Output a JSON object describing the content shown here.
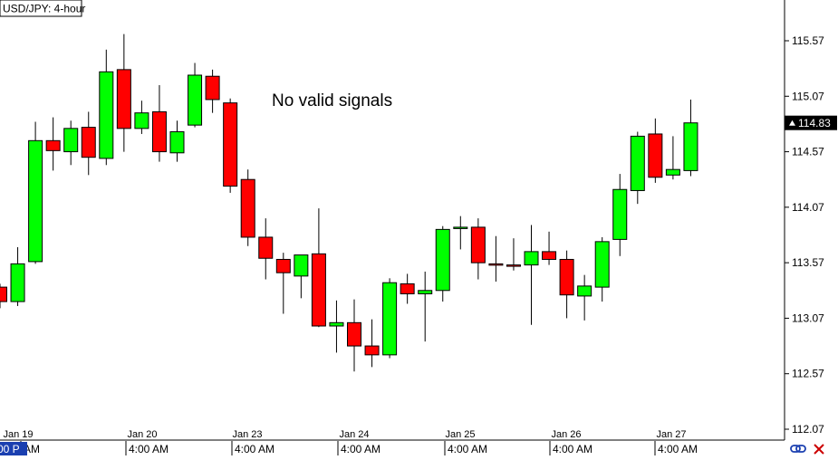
{
  "header": {
    "symbol_label": "USD/JPY: 4-hour"
  },
  "annotation": {
    "text": "No valid signals"
  },
  "price_badge": {
    "value": "114.83"
  },
  "status_bar": {
    "left_clip": "00 P"
  },
  "icons": {
    "link": "link-icon",
    "close": "close-x-icon"
  },
  "colors": {
    "bull": "#00ff00",
    "bear": "#ff0000",
    "outline": "#000000",
    "axis": "#000000",
    "background": "#ffffff",
    "badge_bg": "#000000",
    "badge_text": "#ffffff",
    "status_bar_bg": "#1a3fb0",
    "close_icon": "#cc0000",
    "link_icon": "#1a3fb0"
  },
  "chart_data": {
    "type": "candlestick",
    "title": "USD/JPY: 4-hour",
    "ylim": [
      112.07,
      115.82
    ],
    "y_ticks": [
      "115.57",
      "115.07",
      "114.57",
      "114.07",
      "113.57",
      "113.07",
      "112.57",
      "112.07"
    ],
    "grid": false,
    "date_labels": [
      "Jan 19",
      "Jan 20",
      "Jan 23",
      "Jan 24",
      "Jan 25",
      "Jan 26",
      "Jan 27"
    ],
    "time_labels": [
      "AM",
      "4:00 AM",
      "4:00 AM",
      "4:00 AM",
      "4:00 AM",
      "4:00 AM",
      "4:00 AM"
    ],
    "candles": [
      {
        "o": 113.35,
        "h": 113.38,
        "l": 113.16,
        "c": 113.22
      },
      {
        "o": 113.22,
        "h": 113.71,
        "l": 113.18,
        "c": 113.56
      },
      {
        "o": 113.58,
        "h": 114.84,
        "l": 113.56,
        "c": 114.67
      },
      {
        "o": 114.67,
        "h": 114.88,
        "l": 114.4,
        "c": 114.58
      },
      {
        "o": 114.57,
        "h": 114.85,
        "l": 114.45,
        "c": 114.78
      },
      {
        "o": 114.79,
        "h": 114.93,
        "l": 114.36,
        "c": 114.52
      },
      {
        "o": 114.51,
        "h": 115.49,
        "l": 114.45,
        "c": 115.29
      },
      {
        "o": 115.31,
        "h": 115.63,
        "l": 114.57,
        "c": 114.78
      },
      {
        "o": 114.78,
        "h": 115.03,
        "l": 114.73,
        "c": 114.92
      },
      {
        "o": 114.93,
        "h": 115.17,
        "l": 114.48,
        "c": 114.57
      },
      {
        "o": 114.56,
        "h": 114.85,
        "l": 114.48,
        "c": 114.75
      },
      {
        "o": 114.81,
        "h": 115.37,
        "l": 114.79,
        "c": 115.26
      },
      {
        "o": 115.25,
        "h": 115.31,
        "l": 114.92,
        "c": 115.04
      },
      {
        "o": 115.01,
        "h": 115.05,
        "l": 114.2,
        "c": 114.26
      },
      {
        "o": 114.32,
        "h": 114.41,
        "l": 113.72,
        "c": 113.8
      },
      {
        "o": 113.8,
        "h": 113.97,
        "l": 113.42,
        "c": 113.61
      },
      {
        "o": 113.6,
        "h": 113.66,
        "l": 113.11,
        "c": 113.48
      },
      {
        "o": 113.45,
        "h": 113.62,
        "l": 113.25,
        "c": 113.64
      },
      {
        "o": 113.65,
        "h": 114.06,
        "l": 112.99,
        "c": 113.0
      },
      {
        "o": 113.0,
        "h": 113.23,
        "l": 112.76,
        "c": 113.03
      },
      {
        "o": 113.03,
        "h": 113.24,
        "l": 112.59,
        "c": 112.82
      },
      {
        "o": 112.82,
        "h": 113.06,
        "l": 112.63,
        "c": 112.74
      },
      {
        "o": 112.74,
        "h": 113.43,
        "l": 112.71,
        "c": 113.39
      },
      {
        "o": 113.38,
        "h": 113.47,
        "l": 113.2,
        "c": 113.29
      },
      {
        "o": 113.29,
        "h": 113.49,
        "l": 112.86,
        "c": 113.32
      },
      {
        "o": 113.32,
        "h": 113.9,
        "l": 113.22,
        "c": 113.87
      },
      {
        "o": 113.89,
        "h": 113.99,
        "l": 113.69,
        "c": 113.89
      },
      {
        "o": 113.89,
        "h": 113.97,
        "l": 113.42,
        "c": 113.57
      },
      {
        "o": 113.56,
        "h": 113.81,
        "l": 113.4,
        "c": 113.55
      },
      {
        "o": 113.55,
        "h": 113.79,
        "l": 113.5,
        "c": 113.54
      },
      {
        "o": 113.55,
        "h": 113.91,
        "l": 113.01,
        "c": 113.67
      },
      {
        "o": 113.67,
        "h": 113.85,
        "l": 113.55,
        "c": 113.6
      },
      {
        "o": 113.6,
        "h": 113.68,
        "l": 113.07,
        "c": 113.28
      },
      {
        "o": 113.27,
        "h": 113.46,
        "l": 113.05,
        "c": 113.36
      },
      {
        "o": 113.35,
        "h": 113.8,
        "l": 113.22,
        "c": 113.76
      },
      {
        "o": 113.78,
        "h": 114.37,
        "l": 113.63,
        "c": 114.23
      },
      {
        "o": 114.22,
        "h": 114.75,
        "l": 114.1,
        "c": 114.71
      },
      {
        "o": 114.73,
        "h": 114.87,
        "l": 114.29,
        "c": 114.34
      },
      {
        "o": 114.36,
        "h": 114.71,
        "l": 114.32,
        "c": 114.41
      },
      {
        "o": 114.4,
        "h": 115.04,
        "l": 114.35,
        "c": 114.83
      }
    ]
  }
}
